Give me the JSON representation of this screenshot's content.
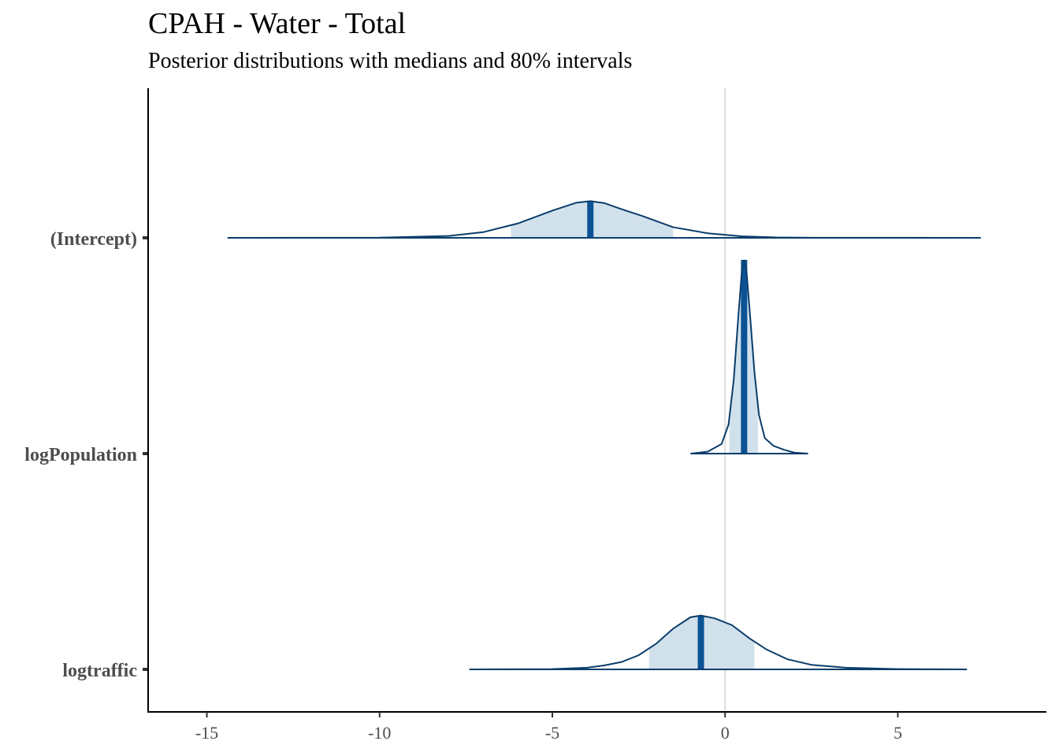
{
  "title": "CPAH - Water - Total",
  "subtitle": "Posterior distributions with medians and 80% intervals",
  "chart_data": {
    "type": "ridgeline",
    "title": "CPAH - Water - Total",
    "subtitle": "Posterior distributions with medians and 80% intervals",
    "xlim": [
      -16.7,
      9.3
    ],
    "x_ticks": [
      -15,
      -10,
      -5,
      0,
      5
    ],
    "x_tick_labels": [
      "-15",
      "-10",
      "-5",
      "0",
      "5"
    ],
    "reference_line_x": 0,
    "grid": false,
    "colors": {
      "outline": "#0b3d6b",
      "fill": "#d1e1ec",
      "median": "#0b5394",
      "reference": "#dddddd",
      "axis": "#000000"
    },
    "params": [
      {
        "name": "(Intercept)",
        "median": -3.9,
        "interval_80": [
          -6.2,
          -1.5
        ],
        "range": [
          -14.4,
          7.4
        ],
        "density": [
          [
            -14.4,
            0
          ],
          [
            -10,
            0.005
          ],
          [
            -8,
            0.05
          ],
          [
            -7,
            0.15
          ],
          [
            -6,
            0.38
          ],
          [
            -5,
            0.72
          ],
          [
            -4.3,
            0.93
          ],
          [
            -3.9,
            0.97
          ],
          [
            -3.5,
            0.92
          ],
          [
            -3,
            0.76
          ],
          [
            -2.4,
            0.58
          ],
          [
            -1.5,
            0.28
          ],
          [
            -0.5,
            0.12
          ],
          [
            0.5,
            0.04
          ],
          [
            1.5,
            0.01
          ],
          [
            2.5,
            0.003
          ],
          [
            7.4,
            0
          ]
        ]
      },
      {
        "name": "logPopulation",
        "median": 0.55,
        "interval_80": [
          0.12,
          0.95
        ],
        "range": [
          -1.0,
          2.4
        ],
        "density": [
          [
            -1.0,
            0
          ],
          [
            -0.5,
            0.01
          ],
          [
            -0.1,
            0.05
          ],
          [
            0.1,
            0.15
          ],
          [
            0.25,
            0.38
          ],
          [
            0.38,
            0.7
          ],
          [
            0.48,
            0.93
          ],
          [
            0.55,
            1.0
          ],
          [
            0.62,
            0.94
          ],
          [
            0.72,
            0.72
          ],
          [
            0.85,
            0.42
          ],
          [
            0.98,
            0.2
          ],
          [
            1.15,
            0.08
          ],
          [
            1.4,
            0.04
          ],
          [
            1.7,
            0.02
          ],
          [
            2.0,
            0.005
          ],
          [
            2.4,
            0
          ]
        ]
      },
      {
        "name": "logtraffic",
        "median": -0.7,
        "interval_80": [
          -2.2,
          0.85
        ],
        "range": [
          -7.4,
          7.0
        ],
        "density": [
          [
            -7.4,
            0
          ],
          [
            -5,
            0.005
          ],
          [
            -4,
            0.03
          ],
          [
            -3.5,
            0.07
          ],
          [
            -3,
            0.13
          ],
          [
            -2.5,
            0.25
          ],
          [
            -2,
            0.45
          ],
          [
            -1.5,
            0.72
          ],
          [
            -1,
            0.92
          ],
          [
            -0.7,
            0.95
          ],
          [
            -0.3,
            0.9
          ],
          [
            0.2,
            0.78
          ],
          [
            0.7,
            0.55
          ],
          [
            1.2,
            0.35
          ],
          [
            1.8,
            0.18
          ],
          [
            2.5,
            0.08
          ],
          [
            3.5,
            0.03
          ],
          [
            5,
            0.005
          ],
          [
            7.0,
            0
          ]
        ]
      }
    ]
  }
}
